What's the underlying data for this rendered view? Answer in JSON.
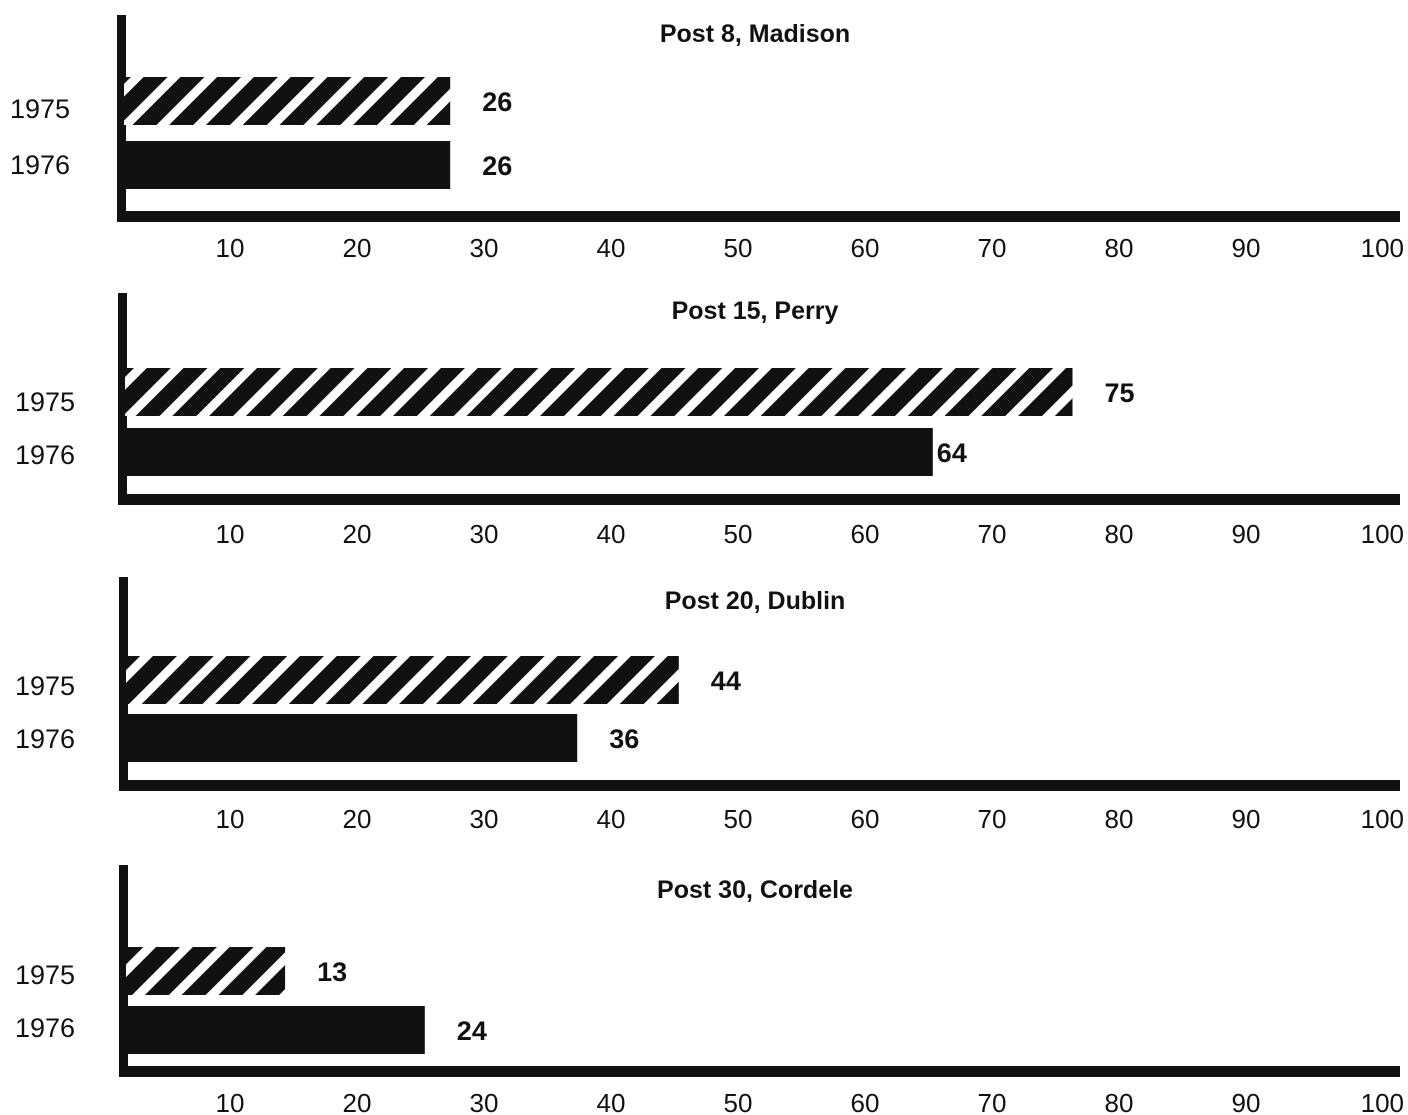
{
  "chart_data": [
    {
      "type": "bar",
      "orientation": "horizontal",
      "title": "Post 8, Madison",
      "categories": [
        "1975",
        "1976"
      ],
      "values": [
        26,
        26
      ],
      "value_labels": [
        "26",
        "26"
      ],
      "xlim": [
        0,
        100
      ],
      "xticks": [
        10,
        20,
        30,
        40,
        50,
        60,
        70,
        80,
        90,
        100
      ],
      "xtick_labels": [
        "10",
        "20",
        "30",
        "40",
        "50",
        "60",
        "70",
        "80",
        "90",
        "100"
      ]
    },
    {
      "type": "bar",
      "orientation": "horizontal",
      "title": "Post 15, Perry",
      "categories": [
        "1975",
        "1976"
      ],
      "values": [
        75,
        64
      ],
      "value_labels": [
        "75",
        "64"
      ],
      "xlim": [
        0,
        100
      ],
      "xticks": [
        10,
        20,
        30,
        40,
        50,
        60,
        70,
        80,
        90,
        100
      ],
      "xtick_labels": [
        "10",
        "20",
        "30",
        "40",
        "50",
        "60",
        "70",
        "80",
        "90",
        "100"
      ]
    },
    {
      "type": "bar",
      "orientation": "horizontal",
      "title": "Post 20, Dublin",
      "categories": [
        "1975",
        "1976"
      ],
      "values": [
        44,
        36
      ],
      "value_labels": [
        "44",
        "36"
      ],
      "xlim": [
        0,
        100
      ],
      "xticks": [
        10,
        20,
        30,
        40,
        50,
        60,
        70,
        80,
        90,
        100
      ],
      "xtick_labels": [
        "10",
        "20",
        "30",
        "40",
        "50",
        "60",
        "70",
        "80",
        "90",
        "100"
      ]
    },
    {
      "type": "bar",
      "orientation": "horizontal",
      "title": "Post 30, Cordele",
      "categories": [
        "1975",
        "1976"
      ],
      "values": [
        13,
        24
      ],
      "value_labels": [
        "13",
        "24"
      ],
      "xlim": [
        0,
        100
      ],
      "xticks": [
        10,
        20,
        30,
        40,
        50,
        60,
        70,
        80,
        90,
        100
      ],
      "xtick_labels": [
        "10",
        "20",
        "30",
        "40",
        "50",
        "60",
        "70",
        "80",
        "90",
        "100"
      ]
    }
  ],
  "style": {
    "ink_color": "#111111",
    "background_color": "#ffffff",
    "bar_fill_1975": "diagonal-hatch",
    "bar_fill_1976": "solid"
  }
}
